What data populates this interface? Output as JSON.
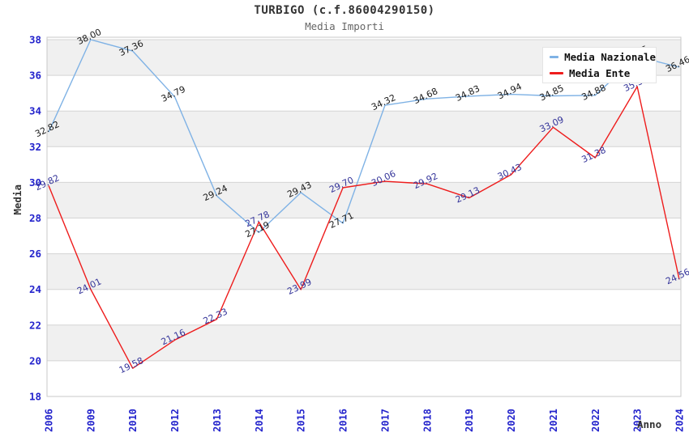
{
  "header": {
    "title": "TURBIGO (c.f.86004290150)",
    "subtitle": "Media Importi"
  },
  "colors": {
    "nazionale_line": "#7fb2e5",
    "ente_line": "#ee1c1c",
    "axis_tick_text": "#2323cc",
    "nazionale_label_text": "#1a1a1a",
    "ente_label_text": "#333399",
    "gridline": "#d4d4d4",
    "band_gray": "#f0f0f0",
    "plot_border": "#c8c8c8"
  },
  "legend": {
    "items": [
      {
        "label": "Media Nazionale",
        "series": "nazionale"
      },
      {
        "label": "Media Ente",
        "series": "ente"
      }
    ]
  },
  "chart_data": {
    "type": "line",
    "title": "TURBIGO (c.f.86004290150)",
    "subtitle": "Media Importi",
    "xlabel": "Anno",
    "ylabel": "Media",
    "ylim": [
      18,
      38
    ],
    "ytick_step": 2,
    "grid": "horizontal gridlines every 2 units with alternating light-gray bands (20-22, 24-26, 28-30, 32-34, 36-38)",
    "legend_position": "top-right inside plot, white box overlapping some labels",
    "categories": [
      "2006",
      "2009",
      "2010",
      "2012",
      "2013",
      "2014",
      "2015",
      "2016",
      "2017",
      "2018",
      "2019",
      "2020",
      "2021",
      "2022",
      "2023",
      "2024"
    ],
    "series": [
      {
        "name": "Media Nazionale",
        "color": "#7fb2e5",
        "label_color": "#1a1a1a",
        "values": [
          32.82,
          38.0,
          37.36,
          34.79,
          29.24,
          27.19,
          29.43,
          27.71,
          34.32,
          34.68,
          34.83,
          34.94,
          34.85,
          34.88,
          37.05,
          36.46
        ],
        "labels": [
          "32.82",
          "38.00",
          "37.36",
          "34.79",
          "29.24",
          "27.19",
          "29.43",
          "27.71",
          "34.32",
          "34.68",
          "34.83",
          "34.94",
          "34.85",
          "34.88",
          "37.05",
          "36.46"
        ]
      },
      {
        "name": "Media Ente",
        "color": "#ee1c1c",
        "label_color": "#333399",
        "values": [
          29.82,
          24.01,
          19.58,
          21.16,
          22.33,
          27.78,
          23.99,
          29.7,
          30.06,
          29.92,
          29.13,
          30.43,
          33.09,
          31.38,
          35.37,
          24.56
        ],
        "labels": [
          "29.82",
          "24.01",
          "19.58",
          "21.16",
          "22.33",
          "27.78",
          "23.99",
          "29.70",
          "30.06",
          "29.92",
          "29.13",
          "30.43",
          "33.09",
          "31.38",
          "35.37",
          "24.56"
        ]
      }
    ]
  }
}
